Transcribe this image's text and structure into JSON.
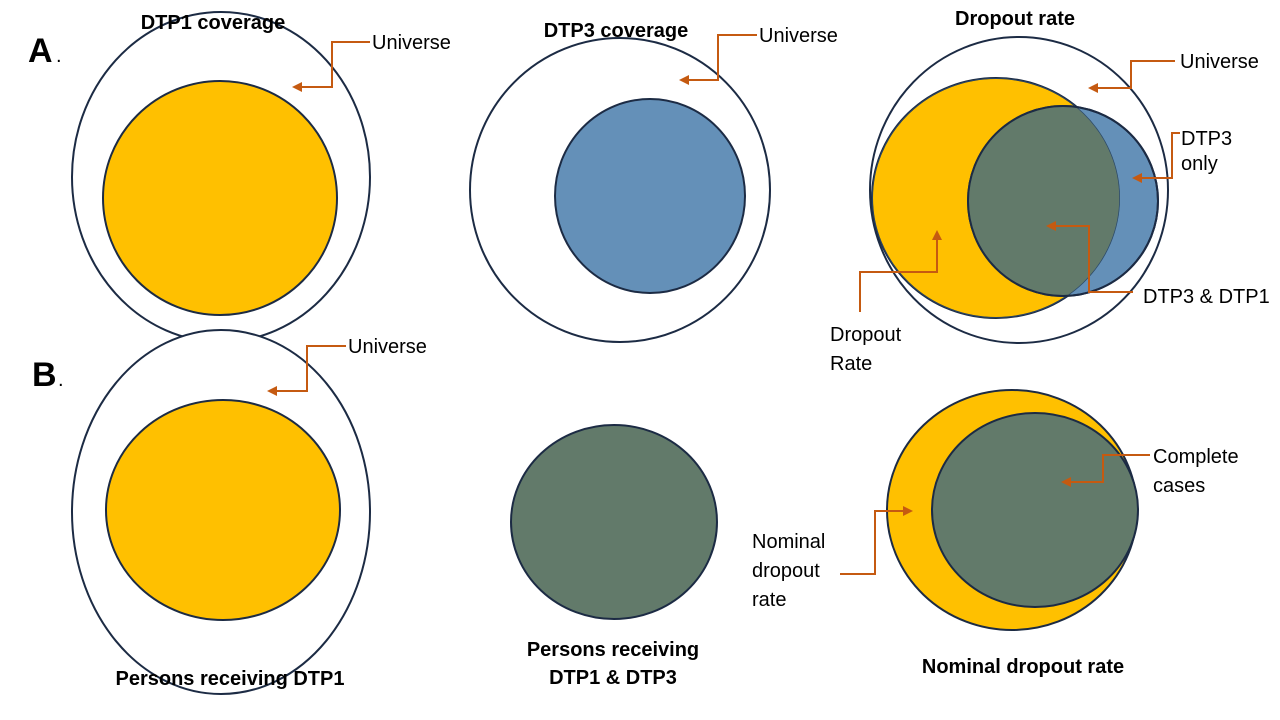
{
  "panel_labels": {
    "a": "A",
    "a_dot": ".",
    "b": "B",
    "b_dot": "."
  },
  "colors": {
    "yellow": "#ffc000",
    "blue": "#6490b8",
    "green": "#627a6a",
    "outline": "#1c2b44",
    "connector": "#c55a11"
  },
  "a1": {
    "title": "DTP1 coverage",
    "universe": "Universe"
  },
  "a2": {
    "title": "DTP3 coverage",
    "universe": "Universe"
  },
  "a3": {
    "title": "Dropout rate",
    "universe": "Universe",
    "dtp3_only": [
      "DTP3",
      "only"
    ],
    "both": "DTP3 & DTP1",
    "dropout": [
      "Dropout",
      "Rate"
    ]
  },
  "b1": {
    "title": "Persons receiving DTP1",
    "universe": "Universe"
  },
  "b2": {
    "title": [
      "Persons receiving",
      "DTP1 & DTP3"
    ]
  },
  "b3": {
    "title": "Nominal dropout rate",
    "complete": [
      "Complete",
      "cases"
    ],
    "nominal": [
      "Nominal",
      "dropout",
      "rate"
    ]
  }
}
